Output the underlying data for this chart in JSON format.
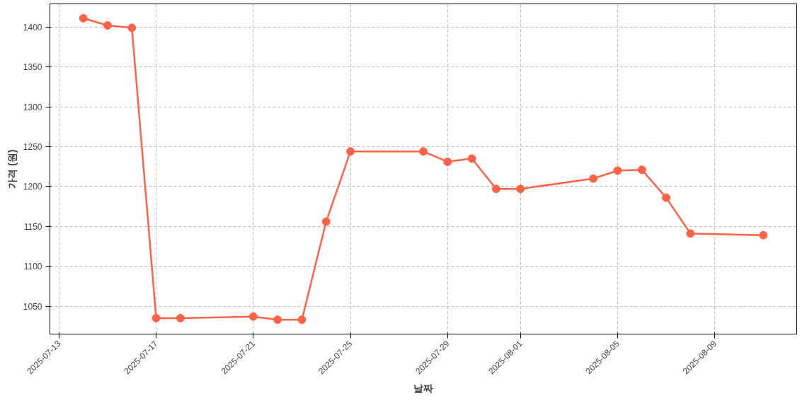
{
  "chart_data": {
    "type": "line",
    "xlabel": "날짜",
    "ylabel": "가격 (원)",
    "x": [
      "2025-07-14",
      "2025-07-15",
      "2025-07-16",
      "2025-07-17",
      "2025-07-18",
      "2025-07-21",
      "2025-07-22",
      "2025-07-23",
      "2025-07-24",
      "2025-07-25",
      "2025-07-28",
      "2025-07-29",
      "2025-07-30",
      "2025-07-31",
      "2025-08-01",
      "2025-08-04",
      "2025-08-05",
      "2025-08-06",
      "2025-08-07",
      "2025-08-08",
      "2025-08-11"
    ],
    "series": [
      {
        "color": "#ff6347",
        "values": [
          1411,
          1402,
          1399,
          1035,
          1035,
          1037,
          1033,
          1033,
          1156,
          1244,
          1244,
          1231,
          1235,
          1197,
          1197,
          1210,
          1220,
          1221,
          1186,
          1141,
          1139
        ]
      }
    ],
    "xlim": [
      "2025-07-12T15:00",
      "2025-08-12T09:00"
    ],
    "xticks": [
      "2025-07-13",
      "2025-07-17",
      "2025-07-21",
      "2025-07-25",
      "2025-07-29",
      "2025-08-01",
      "2025-08-05",
      "2025-08-09"
    ],
    "ylim": [
      1015,
      1429
    ],
    "yticks": [
      1050,
      1100,
      1150,
      1200,
      1250,
      1300,
      1350,
      1400
    ],
    "grid": true,
    "marker": "circle",
    "line_style": "solid"
  }
}
